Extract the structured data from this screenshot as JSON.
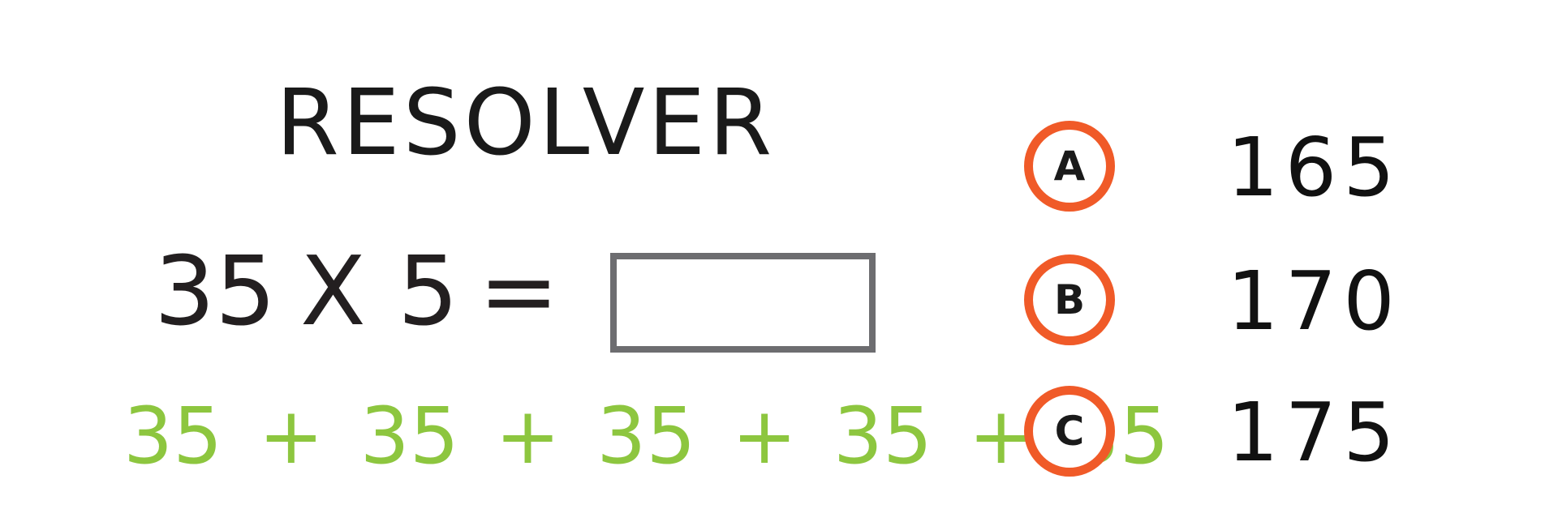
{
  "title": "RESOLVER",
  "problem": {
    "operand_a": "35",
    "operator": "X",
    "operand_b": "5",
    "equals": "=",
    "answer": ""
  },
  "hint": "35 + 35 + 35 + 35 + 35",
  "options": [
    {
      "letter": "A",
      "value": "165"
    },
    {
      "letter": "B",
      "value": "170"
    },
    {
      "letter": "C",
      "value": "175"
    }
  ],
  "colors": {
    "option_ring": "#f05a28",
    "hint_text": "#8dc63f",
    "answer_box_border": "#6d6d70"
  }
}
